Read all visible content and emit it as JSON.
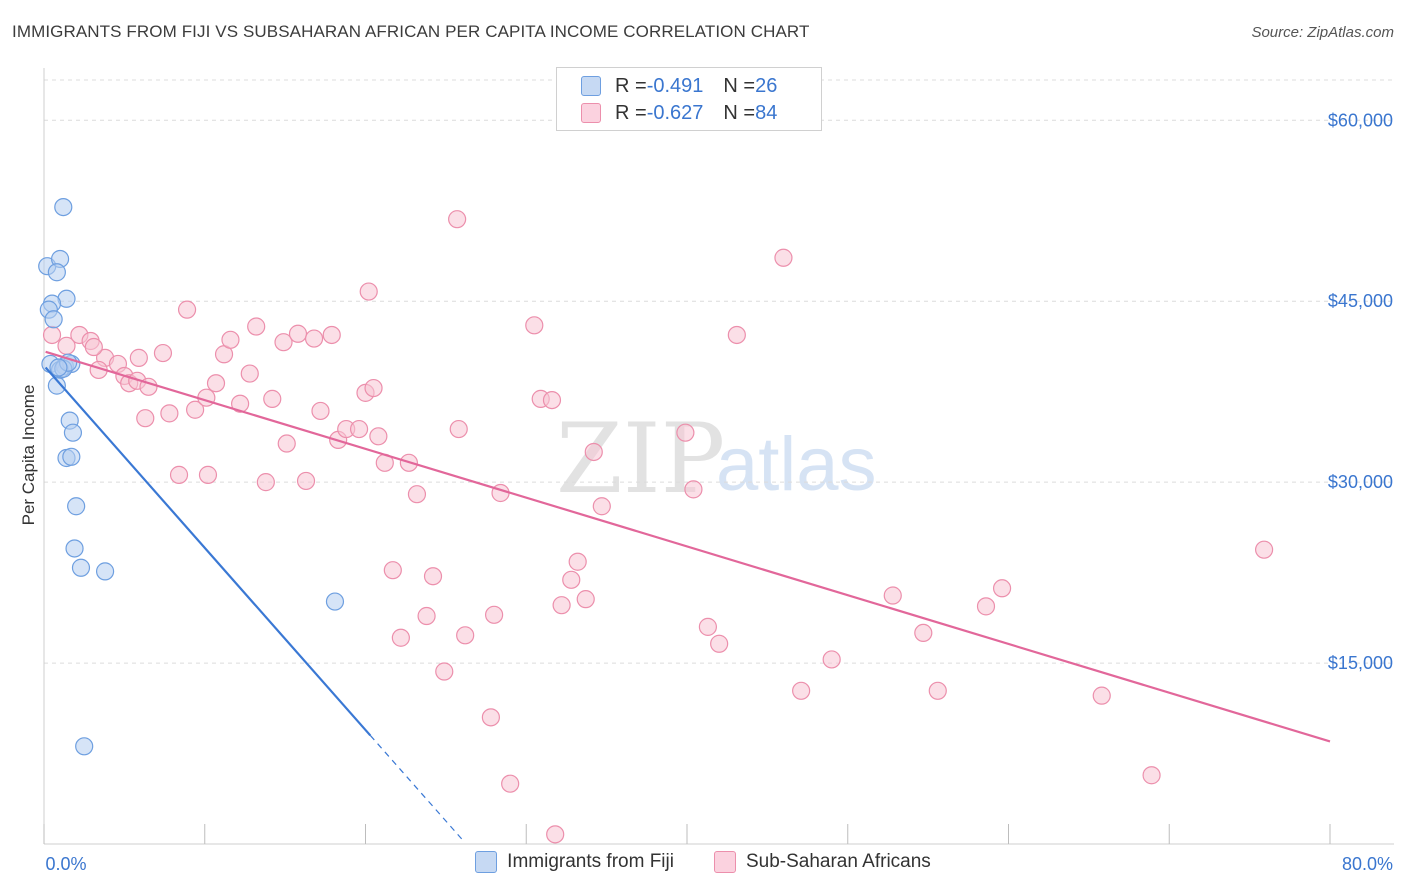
{
  "title": "IMMIGRANTS FROM FIJI VS SUBSAHARAN AFRICAN PER CAPITA INCOME CORRELATION CHART",
  "source": "Source: ZipAtlas.com",
  "watermark": {
    "zip": "ZIP",
    "atlas": "atlas"
  },
  "colors": {
    "fiji_fill": "#b4cdf0",
    "fiji_stroke": "#6e9fe0",
    "fiji_line": "#3a78d4",
    "ssa_fill": "#f8c4d4",
    "ssa_stroke": "#ec8fac",
    "ssa_line": "#e2679a",
    "axis_text": "#3a76cf",
    "grid": "#dcdcdc"
  },
  "legend_top": [
    {
      "r_label": "R = ",
      "r_value": "-0.491",
      "n_label": "N = ",
      "n_value": "26"
    },
    {
      "r_label": "R = ",
      "r_value": "-0.627",
      "n_label": "N = ",
      "n_value": "84"
    }
  ],
  "chart_data": {
    "type": "scatter",
    "title": "IMMIGRANTS FROM FIJI VS SUBSAHARAN AFRICAN PER CAPITA INCOME CORRELATION CHART",
    "xlabel": "",
    "ylabel": "Per Capita Income",
    "xlim": [
      0,
      80
    ],
    "ylim": [
      0,
      64000
    ],
    "x_tick_labels": [
      "0.0%",
      "80.0%"
    ],
    "y_ticks": [
      15000,
      30000,
      45000,
      60000
    ],
    "y_tick_labels": [
      "$15,000",
      "$30,000",
      "$45,000",
      "$60,000"
    ],
    "grid": true,
    "legend_placement": "bottom",
    "series": [
      {
        "name": "Immigrants from Fiji",
        "r": -0.491,
        "n": 26,
        "trend": {
          "x0": 0.1,
          "y0": 39500,
          "x1": 20.3,
          "y1": 9000,
          "dash_to_x": 26.0
        },
        "points": [
          [
            1.2,
            52800
          ],
          [
            0.2,
            47900
          ],
          [
            1.0,
            48500
          ],
          [
            0.8,
            47400
          ],
          [
            1.4,
            45200
          ],
          [
            0.5,
            44800
          ],
          [
            0.3,
            44300
          ],
          [
            0.6,
            43500
          ],
          [
            0.4,
            39800
          ],
          [
            1.3,
            39600
          ],
          [
            1.0,
            39300
          ],
          [
            1.7,
            39800
          ],
          [
            0.8,
            38000
          ],
          [
            1.6,
            35100
          ],
          [
            1.8,
            34100
          ],
          [
            1.4,
            32000
          ],
          [
            1.7,
            32100
          ],
          [
            2.0,
            28000
          ],
          [
            1.9,
            24500
          ],
          [
            2.3,
            22900
          ],
          [
            3.8,
            22600
          ],
          [
            18.1,
            20100
          ],
          [
            2.5,
            8100
          ],
          [
            1.2,
            39400
          ],
          [
            1.5,
            39900
          ],
          [
            0.9,
            39500
          ]
        ]
      },
      {
        "name": "Sub-Saharan Africans",
        "r": -0.627,
        "n": 84,
        "trend": {
          "x0": 0.1,
          "y0": 40800,
          "x1": 80.0,
          "y1": 8500
        },
        "points": [
          [
            0.5,
            42200
          ],
          [
            1.4,
            41300
          ],
          [
            2.2,
            42200
          ],
          [
            2.9,
            41700
          ],
          [
            3.8,
            40300
          ],
          [
            3.4,
            39300
          ],
          [
            4.6,
            39800
          ],
          [
            5.0,
            38800
          ],
          [
            5.3,
            38200
          ],
          [
            5.8,
            38400
          ],
          [
            6.5,
            37900
          ],
          [
            6.3,
            35300
          ],
          [
            7.4,
            40700
          ],
          [
            7.8,
            35700
          ],
          [
            8.4,
            30600
          ],
          [
            8.9,
            44300
          ],
          [
            9.4,
            36000
          ],
          [
            10.1,
            37000
          ],
          [
            10.2,
            30600
          ],
          [
            10.7,
            38200
          ],
          [
            11.2,
            40600
          ],
          [
            11.6,
            41800
          ],
          [
            12.2,
            36500
          ],
          [
            12.8,
            39000
          ],
          [
            13.2,
            42900
          ],
          [
            14.2,
            36900
          ],
          [
            13.8,
            30000
          ],
          [
            14.9,
            41600
          ],
          [
            15.1,
            33200
          ],
          [
            15.8,
            42300
          ],
          [
            16.3,
            30100
          ],
          [
            16.8,
            41900
          ],
          [
            17.2,
            35900
          ],
          [
            17.9,
            42200
          ],
          [
            18.3,
            33500
          ],
          [
            18.8,
            34400
          ],
          [
            19.6,
            34400
          ],
          [
            20.0,
            37400
          ],
          [
            20.2,
            45800
          ],
          [
            20.5,
            37800
          ],
          [
            21.2,
            31600
          ],
          [
            21.7,
            22700
          ],
          [
            22.2,
            17100
          ],
          [
            22.7,
            31600
          ],
          [
            23.2,
            29000
          ],
          [
            23.8,
            18900
          ],
          [
            24.2,
            22200
          ],
          [
            24.9,
            14300
          ],
          [
            25.7,
            51800
          ],
          [
            25.8,
            34400
          ],
          [
            26.2,
            17300
          ],
          [
            28.0,
            19000
          ],
          [
            27.8,
            10500
          ],
          [
            28.4,
            29100
          ],
          [
            29.0,
            5000
          ],
          [
            30.5,
            43000
          ],
          [
            30.9,
            36900
          ],
          [
            31.6,
            36800
          ],
          [
            31.8,
            800
          ],
          [
            32.2,
            19800
          ],
          [
            32.8,
            21900
          ],
          [
            33.2,
            23400
          ],
          [
            33.7,
            20300
          ],
          [
            34.2,
            32500
          ],
          [
            34.7,
            28000
          ],
          [
            39.9,
            34100
          ],
          [
            40.4,
            29400
          ],
          [
            41.3,
            18000
          ],
          [
            42.0,
            16600
          ],
          [
            43.1,
            42200
          ],
          [
            46.0,
            48600
          ],
          [
            47.1,
            12700
          ],
          [
            49.0,
            15300
          ],
          [
            52.8,
            20600
          ],
          [
            54.7,
            17500
          ],
          [
            55.6,
            12700
          ],
          [
            58.6,
            19700
          ],
          [
            59.6,
            21200
          ],
          [
            65.8,
            12300
          ],
          [
            68.9,
            5700
          ],
          [
            75.9,
            24400
          ],
          [
            20.8,
            33800
          ],
          [
            5.9,
            40300
          ],
          [
            3.1,
            41200
          ]
        ]
      }
    ]
  }
}
